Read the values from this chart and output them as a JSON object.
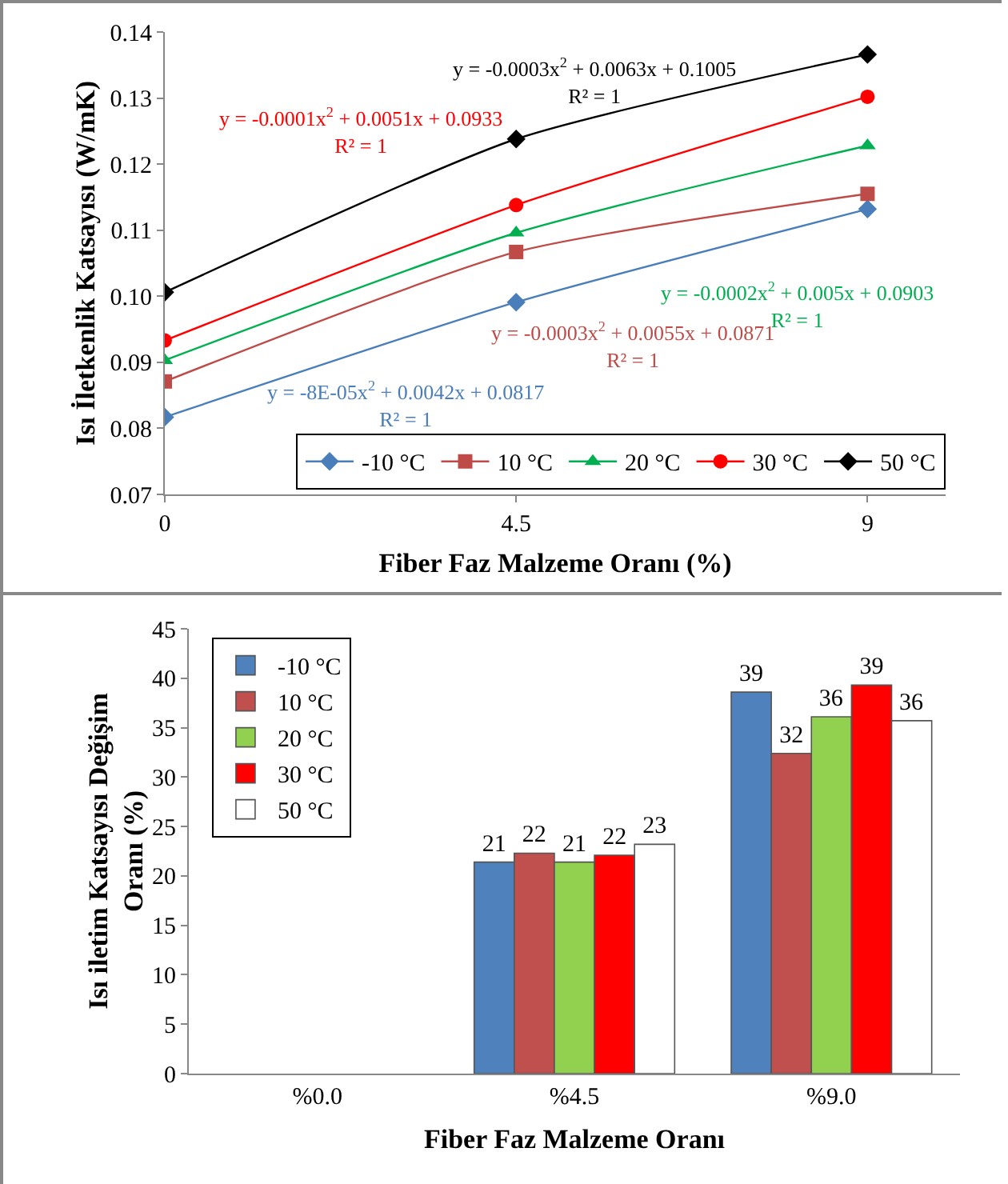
{
  "chart_data": [
    {
      "type": "line",
      "xlabel": "Fiber Faz Malzeme Oranı (%)",
      "ylabel": "Isı İletkenlik Katsayısı (W/mK)",
      "x": [
        0,
        4.5,
        9
      ],
      "xlim": [
        0,
        10
      ],
      "xticks": [
        0,
        4.5,
        9
      ],
      "ylim": [
        0.07,
        0.14
      ],
      "yticks": [
        0.07,
        0.08,
        0.09,
        {
          "value": 0.1,
          "label": "0.10"
        },
        0.11,
        0.12,
        0.13,
        0.14
      ],
      "grid": false,
      "legend": "bottom right",
      "line_style": "solid",
      "series": [
        {
          "name": "-10 °C",
          "color": "#4a7ebb",
          "marker": "diamond",
          "values": [
            0.0817,
            0.0991,
            0.1132
          ]
        },
        {
          "name": "10 °C",
          "color": "#be4b48",
          "marker": "square",
          "values": [
            0.0871,
            0.1067,
            0.1155
          ]
        },
        {
          "name": "20 °C",
          "color": "#00b050",
          "marker": "triangle",
          "values": [
            0.0903,
            0.1096,
            0.1228
          ]
        },
        {
          "name": "30 °C",
          "color": "#ff0000",
          "marker": "circle",
          "values": [
            0.0933,
            0.1138,
            0.1302
          ]
        },
        {
          "name": "50 °C",
          "color": "#000000",
          "marker": "diamond",
          "values": [
            0.1006,
            0.1238,
            0.1366
          ]
        }
      ],
      "annotations": [
        "y = -8E-05x$^{2}$ + 0.0042x + 0.0817\nR² = 1",
        "y = -0.0003x$^{2}$ + 0.0055x + 0.0871\nR² = 1",
        "y = -0.0002x$^{2}$ + 0.005x + 0.0903\nR² = 1",
        "y = -0.0001x$^{2}$ + 0.0051x + 0.0933\nR² = 1",
        "y = -0.0003x$^{2}$ + 0.0063x + 0.1005\nR² = 1"
      ]
    },
    {
      "type": "bar",
      "xlabel": "Fiber Faz Malzeme Oranı",
      "ylabel": "Isı iletim Katsayısı Değişim\nOranı (%)",
      "categories": [
        "%0.0",
        "%4.5",
        "%9.0"
      ],
      "ylim": [
        0,
        45
      ],
      "yticks": [
        0,
        5,
        10,
        15,
        20,
        25,
        30,
        35,
        40,
        45
      ],
      "grid": false,
      "legend": "top left",
      "series": [
        {
          "name": "-10 °C",
          "color": "#4f81bd",
          "values": [
            0,
            21.4,
            38.6
          ],
          "value_labels": [
            null,
            "21",
            "39"
          ]
        },
        {
          "name": "10 °C",
          "color": "#c0504d",
          "values": [
            0,
            22.3,
            32.4
          ],
          "value_labels": [
            null,
            "22",
            "32"
          ]
        },
        {
          "name": "20 °C",
          "color": "#92d050",
          "values": [
            0,
            21.4,
            36.1
          ],
          "value_labels": [
            null,
            "21",
            "36"
          ]
        },
        {
          "name": "30 °C",
          "color": "#ff0000",
          "values": [
            0,
            22.1,
            39.3
          ],
          "value_labels": [
            null,
            "22",
            "39"
          ]
        },
        {
          "name": "50 °C",
          "color": "#ffffff",
          "values": [
            0,
            23.2,
            35.7
          ],
          "value_labels": [
            null,
            "23",
            "36"
          ]
        }
      ]
    }
  ]
}
